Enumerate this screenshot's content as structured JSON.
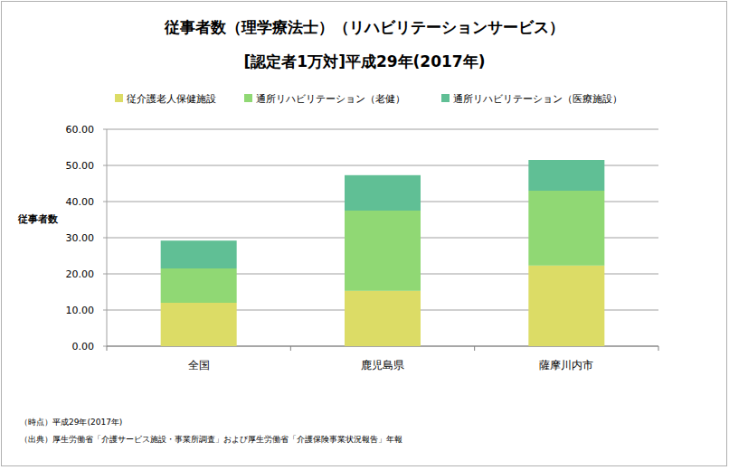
{
  "chart_data": {
    "type": "bar",
    "title": "従事者数（理学療法士）（リハビリテーションサービス）",
    "subtitle": "[認定者1万対]平成29年(2017年)",
    "y_label": "従事者数",
    "categories": [
      "全国",
      "鹿児島県",
      "薩摩川内市"
    ],
    "series": [
      {
        "name": "従介護老人保健施設",
        "color": "#dcdc66",
        "values": [
          12.0,
          15.3,
          22.3
        ]
      },
      {
        "name": "通所リハビリテーション（老健）",
        "color": "#90d874",
        "values": [
          9.5,
          22.2,
          20.7
        ]
      },
      {
        "name": "通所リハビリテーション（医療施設）",
        "color": "#60bf95",
        "values": [
          7.7,
          9.8,
          8.5
        ]
      }
    ],
    "stacked": true,
    "grid": true,
    "legend": "top",
    "ylim": [
      0,
      60
    ],
    "yticks": [
      {
        "value": 0,
        "label": "0.00"
      },
      {
        "value": 10,
        "label": "10.00"
      },
      {
        "value": 20,
        "label": "20.00"
      },
      {
        "value": 30,
        "label": "30.00"
      },
      {
        "value": 40,
        "label": "40.00"
      },
      {
        "value": 50,
        "label": "50.00"
      },
      {
        "value": 60,
        "label": "60.00"
      }
    ],
    "annotations": [
      "（時点）平成29年(2017年)",
      "（出典）厚生労働省「介護サービス施設・事業所調査」および厚生労働省「介護保険事業状況報告」年報"
    ]
  }
}
